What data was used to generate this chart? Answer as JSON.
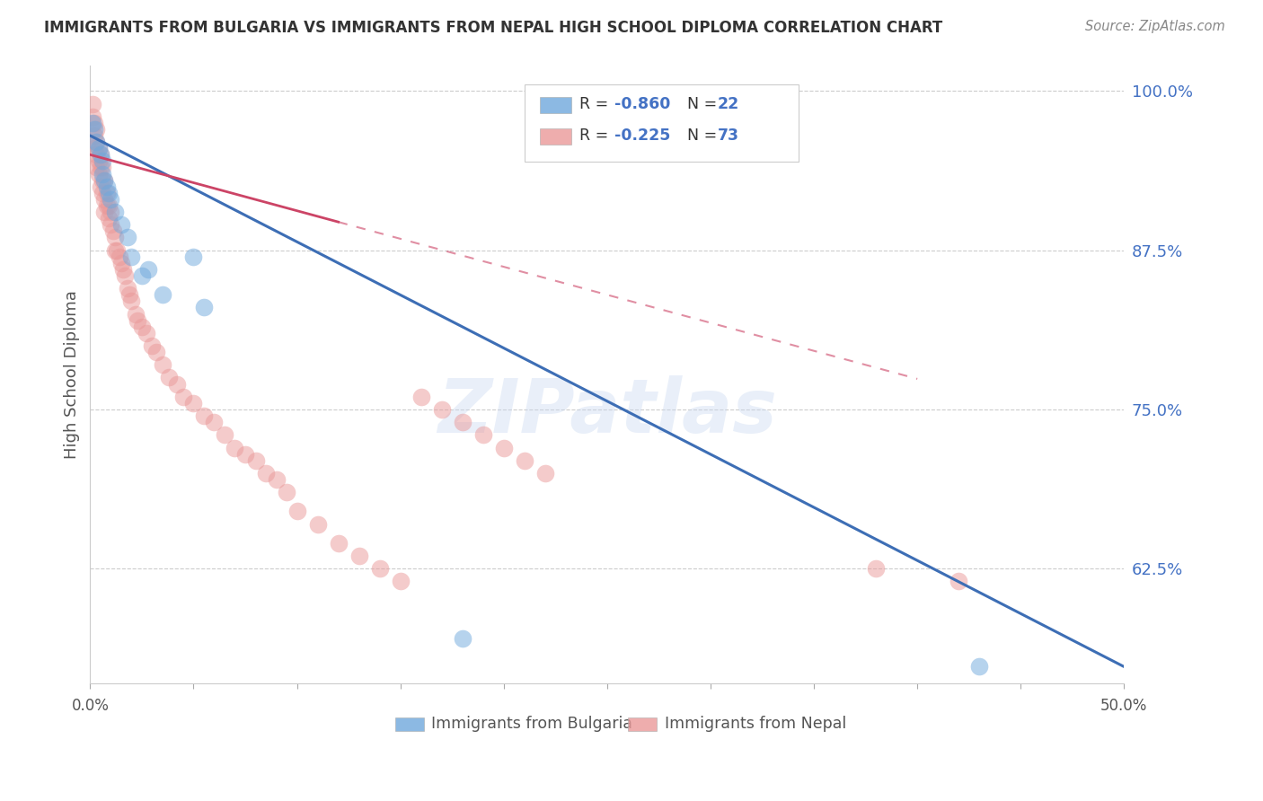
{
  "title": "IMMIGRANTS FROM BULGARIA VS IMMIGRANTS FROM NEPAL HIGH SCHOOL DIPLOMA CORRELATION CHART",
  "source": "Source: ZipAtlas.com",
  "ylabel": "High School Diploma",
  "ytick_labels": [
    "100.0%",
    "87.5%",
    "75.0%",
    "62.5%"
  ],
  "ytick_values": [
    1.0,
    0.875,
    0.75,
    0.625
  ],
  "xlim": [
    0.0,
    0.5
  ],
  "ylim": [
    0.535,
    1.02
  ],
  "blue_color": "#6fa8dc",
  "pink_color": "#ea9999",
  "trend_blue_color": "#3d6eb5",
  "trend_pink_color": "#cc4466",
  "trend_blue_x0": 0.0,
  "trend_blue_y0": 0.965,
  "trend_blue_x1": 0.5,
  "trend_blue_y1": 0.548,
  "trend_pink_x0": 0.0,
  "trend_pink_y0": 0.95,
  "trend_pink_x1": 0.25,
  "trend_pink_y1": 0.84,
  "watermark": "ZIPatlas",
  "bulgaria_x": [
    0.001,
    0.002,
    0.003,
    0.004,
    0.005,
    0.006,
    0.006,
    0.007,
    0.008,
    0.009,
    0.01,
    0.012,
    0.015,
    0.018,
    0.02,
    0.025,
    0.028,
    0.035,
    0.05,
    0.055,
    0.18,
    0.43
  ],
  "bulgaria_y": [
    0.975,
    0.97,
    0.96,
    0.955,
    0.95,
    0.945,
    0.935,
    0.93,
    0.925,
    0.92,
    0.915,
    0.905,
    0.895,
    0.885,
    0.87,
    0.855,
    0.86,
    0.84,
    0.87,
    0.83,
    0.57,
    0.548
  ],
  "nepal_x": [
    0.001,
    0.001,
    0.002,
    0.002,
    0.002,
    0.003,
    0.003,
    0.003,
    0.003,
    0.004,
    0.004,
    0.004,
    0.005,
    0.005,
    0.005,
    0.006,
    0.006,
    0.006,
    0.007,
    0.007,
    0.007,
    0.008,
    0.008,
    0.009,
    0.009,
    0.01,
    0.01,
    0.011,
    0.012,
    0.012,
    0.013,
    0.014,
    0.015,
    0.016,
    0.017,
    0.018,
    0.019,
    0.02,
    0.022,
    0.023,
    0.025,
    0.027,
    0.03,
    0.032,
    0.035,
    0.038,
    0.042,
    0.045,
    0.05,
    0.055,
    0.06,
    0.065,
    0.07,
    0.075,
    0.08,
    0.085,
    0.09,
    0.095,
    0.1,
    0.11,
    0.12,
    0.13,
    0.14,
    0.15,
    0.16,
    0.17,
    0.18,
    0.19,
    0.2,
    0.21,
    0.22,
    0.38,
    0.42
  ],
  "nepal_y": [
    0.99,
    0.98,
    0.975,
    0.965,
    0.955,
    0.97,
    0.96,
    0.95,
    0.94,
    0.955,
    0.945,
    0.935,
    0.95,
    0.94,
    0.925,
    0.94,
    0.93,
    0.92,
    0.93,
    0.915,
    0.905,
    0.92,
    0.91,
    0.91,
    0.9,
    0.905,
    0.895,
    0.89,
    0.885,
    0.875,
    0.875,
    0.87,
    0.865,
    0.86,
    0.855,
    0.845,
    0.84,
    0.835,
    0.825,
    0.82,
    0.815,
    0.81,
    0.8,
    0.795,
    0.785,
    0.775,
    0.77,
    0.76,
    0.755,
    0.745,
    0.74,
    0.73,
    0.72,
    0.715,
    0.71,
    0.7,
    0.695,
    0.685,
    0.67,
    0.66,
    0.645,
    0.635,
    0.625,
    0.615,
    0.76,
    0.75,
    0.74,
    0.73,
    0.72,
    0.71,
    0.7,
    0.625,
    0.615
  ]
}
